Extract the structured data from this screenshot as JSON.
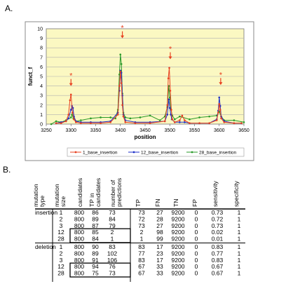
{
  "panel_a_label": "A.",
  "panel_b_label": "B.",
  "chart_data": {
    "type": "line",
    "ylabel": "funct_f",
    "xlabel": "position",
    "xlim": [
      3250,
      3650
    ],
    "ylim": [
      0,
      10
    ],
    "x_ticks": [
      3250,
      3300,
      3350,
      3400,
      3450,
      3500,
      3550,
      3600,
      3650
    ],
    "y_ticks": [
      0,
      1,
      2,
      3,
      4,
      5,
      6,
      7,
      8,
      9,
      10
    ],
    "grid": true,
    "legend_position": "bottom",
    "marker_label": "*",
    "series": [
      {
        "name": "1_base_insertion",
        "color": "#e8401f",
        "x": [
          3270,
          3280,
          3290,
          3295,
          3298,
          3300,
          3303,
          3306,
          3310,
          3320,
          3340,
          3360,
          3380,
          3395,
          3398,
          3400,
          3402,
          3404,
          3406,
          3410,
          3430,
          3460,
          3490,
          3495,
          3497,
          3499,
          3501,
          3503,
          3505,
          3510,
          3520,
          3525,
          3530,
          3540,
          3560,
          3580,
          3595,
          3598,
          3600,
          3602,
          3604,
          3610,
          3630,
          3645
        ],
        "y": [
          0.1,
          0.1,
          0.3,
          1.0,
          2.5,
          3.1,
          1.2,
          0.5,
          0.2,
          0.1,
          0.1,
          0.1,
          0.2,
          1.0,
          4.0,
          5.5,
          4.3,
          2.0,
          0.8,
          0.2,
          0.1,
          0.1,
          0.3,
          2.0,
          4.8,
          5.9,
          3.5,
          1.5,
          0.5,
          0.2,
          0.4,
          0.9,
          0.4,
          0.1,
          0.1,
          0.1,
          0.4,
          1.2,
          2.1,
          1.5,
          0.6,
          0.2,
          0.1,
          0.1
        ]
      },
      {
        "name": "12_base_insertion",
        "color": "#1c2fc8",
        "x": [
          3270,
          3280,
          3290,
          3295,
          3300,
          3302,
          3304,
          3306,
          3310,
          3320,
          3340,
          3360,
          3380,
          3395,
          3398,
          3400,
          3402,
          3404,
          3406,
          3410,
          3430,
          3460,
          3490,
          3495,
          3498,
          3500,
          3502,
          3504,
          3510,
          3520,
          3530,
          3540,
          3560,
          3580,
          3595,
          3598,
          3600,
          3602,
          3604,
          3610,
          3630,
          3645
        ],
        "y": [
          0.1,
          0.2,
          0.3,
          0.6,
          1.5,
          1.9,
          1.7,
          0.8,
          0.3,
          0.2,
          0.2,
          0.2,
          0.3,
          1.2,
          3.5,
          5.6,
          5.4,
          3.0,
          1.0,
          0.4,
          0.2,
          0.2,
          0.3,
          1.0,
          2.6,
          1.7,
          1.0,
          0.5,
          0.2,
          0.2,
          0.2,
          0.1,
          0.1,
          0.1,
          0.5,
          1.4,
          2.8,
          1.9,
          0.8,
          0.3,
          0.1,
          0.1
        ]
      },
      {
        "name": "28_base_insertion",
        "color": "#2a9a2a",
        "x": [
          3260,
          3270,
          3280,
          3290,
          3300,
          3302,
          3305,
          3310,
          3320,
          3340,
          3360,
          3380,
          3390,
          3395,
          3398,
          3400,
          3402,
          3404,
          3406,
          3410,
          3420,
          3440,
          3460,
          3480,
          3490,
          3495,
          3498,
          3500,
          3502,
          3505,
          3510,
          3520,
          3540,
          3560,
          3580,
          3595,
          3600,
          3604,
          3610,
          3630,
          3650
        ],
        "y": [
          0.0,
          0.3,
          0.2,
          0.4,
          0.7,
          1.0,
          0.6,
          0.3,
          0.4,
          0.6,
          0.7,
          0.7,
          0.6,
          1.5,
          5.2,
          7.3,
          6.3,
          3.2,
          1.2,
          0.7,
          0.6,
          0.7,
          0.9,
          0.4,
          0.8,
          1.8,
          4.0,
          2.8,
          1.6,
          0.9,
          0.5,
          0.8,
          0.5,
          0.7,
          0.8,
          0.9,
          1.3,
          0.8,
          0.4,
          0.4,
          0.2
        ]
      }
    ],
    "stars": [
      {
        "x": 3300,
        "y": 5.1
      },
      {
        "x": 3404,
        "y": 10.1
      },
      {
        "x": 3501,
        "y": 7.9
      },
      {
        "x": 3603,
        "y": 5.2
      }
    ]
  },
  "table": {
    "headers": [
      "mutation type",
      "mutation size",
      "candidates",
      "TP in candidates",
      "number of predictions",
      "TP",
      "FN",
      "TN",
      "FP",
      "sensitivity",
      "specificity"
    ],
    "groups": [
      {
        "type": "insertion",
        "rows": [
          [
            "1",
            "800",
            "86",
            "73",
            "73",
            "27",
            "9200",
            "0",
            "0.73",
            "1"
          ],
          [
            "2",
            "800",
            "89",
            "84",
            "72",
            "28",
            "9200",
            "0",
            "0.72",
            "1"
          ],
          [
            "3",
            "800",
            "87",
            "79",
            "73",
            "27",
            "9200",
            "0",
            "0.73",
            "1"
          ],
          [
            "12",
            "800",
            "85",
            "2",
            "2",
            "98",
            "9200",
            "0",
            "0.02",
            "1"
          ],
          [
            "28",
            "800",
            "84",
            "1",
            "1",
            "99",
            "9200",
            "0",
            "0.01",
            "1"
          ]
        ]
      },
      {
        "type": "deletion",
        "rows": [
          [
            "1",
            "800",
            "90",
            "83",
            "83",
            "17",
            "9200",
            "0",
            "0.83",
            "1"
          ],
          [
            "2",
            "800",
            "89",
            "102",
            "77",
            "23",
            "9200",
            "0",
            "0.77",
            "1"
          ],
          [
            "3",
            "800",
            "91",
            "106",
            "83",
            "17",
            "9200",
            "0",
            "0.83",
            "1"
          ],
          [
            "12",
            "800",
            "94",
            "76",
            "67",
            "33",
            "9200",
            "0",
            "0.67",
            "1"
          ],
          [
            "28",
            "800",
            "75",
            "73",
            "67",
            "33",
            "9200",
            "0",
            "0.67",
            "1"
          ]
        ]
      }
    ]
  }
}
